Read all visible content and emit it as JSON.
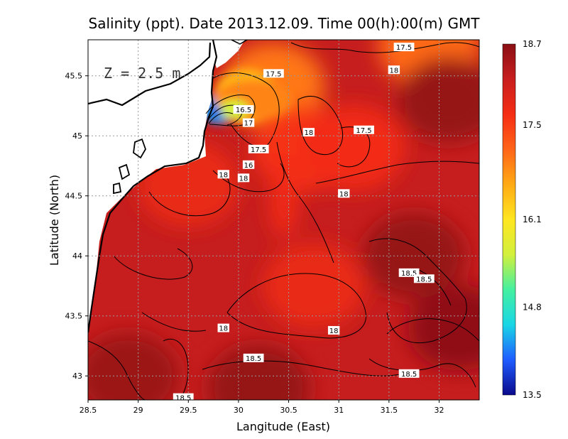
{
  "chart_data": {
    "type": "heatmap",
    "title": "Salinity (ppt). Date 2013.12.09. Time 00(h):00(m) GMT",
    "xlabel": "Langitude (East)",
    "ylabel": "Latitude (North)",
    "annotation": "Z = 2.5 m",
    "xlim": [
      28.5,
      32.4
    ],
    "ylim": [
      42.8,
      45.8
    ],
    "x_ticks": [
      {
        "value": 28.5,
        "label": "28.5"
      },
      {
        "value": 29,
        "label": "29"
      },
      {
        "value": 29.5,
        "label": "29.5"
      },
      {
        "value": 30,
        "label": "30"
      },
      {
        "value": 30.5,
        "label": "30.5"
      },
      {
        "value": 31,
        "label": "31"
      },
      {
        "value": 31.5,
        "label": "31.5"
      },
      {
        "value": 32,
        "label": "32"
      }
    ],
    "y_ticks": [
      {
        "value": 43,
        "label": "43"
      },
      {
        "value": 43.5,
        "label": "43.5"
      },
      {
        "value": 44,
        "label": "44"
      },
      {
        "value": 44.5,
        "label": "44.5"
      },
      {
        "value": 45,
        "label": "45"
      },
      {
        "value": 45.5,
        "label": "45.5"
      }
    ],
    "grid": true,
    "colorbar": {
      "min": 13.5,
      "max": 18.7,
      "placement": "right",
      "ticks": [
        {
          "value": 13.5,
          "label": "13.5"
        },
        {
          "value": 14.8,
          "label": "14.8"
        },
        {
          "value": 16.1,
          "label": "16.1"
        },
        {
          "value": 17.5,
          "label": "17.5"
        },
        {
          "value": 18.7,
          "label": "18.7"
        }
      ],
      "colors": [
        "#0a0a8c",
        "#1f5cff",
        "#19d6e6",
        "#44f0a0",
        "#d2f03c",
        "#ffe620",
        "#ffaa14",
        "#ff6418",
        "#f52d14",
        "#c81e1e",
        "#8a0f14"
      ]
    },
    "contour_labels": [
      {
        "label": "17.5",
        "lon": 31.65,
        "lat": 45.74
      },
      {
        "label": "18",
        "lon": 31.55,
        "lat": 45.55
      },
      {
        "label": "17.5",
        "lon": 30.35,
        "lat": 45.52
      },
      {
        "label": "16.5",
        "lon": 30.05,
        "lat": 45.22
      },
      {
        "label": "17",
        "lon": 30.1,
        "lat": 45.11
      },
      {
        "label": "18",
        "lon": 30.7,
        "lat": 45.03
      },
      {
        "label": "17.5",
        "lon": 31.25,
        "lat": 45.05
      },
      {
        "label": "17.5",
        "lon": 30.2,
        "lat": 44.89
      },
      {
        "label": "16",
        "lon": 30.1,
        "lat": 44.76
      },
      {
        "label": "18",
        "lon": 29.85,
        "lat": 44.68
      },
      {
        "label": "18",
        "lon": 30.05,
        "lat": 44.65
      },
      {
        "label": "18",
        "lon": 31.05,
        "lat": 44.52
      },
      {
        "label": "18.5",
        "lon": 31.7,
        "lat": 43.86
      },
      {
        "label": "18.5",
        "lon": 31.85,
        "lat": 43.81
      },
      {
        "label": "18",
        "lon": 29.85,
        "lat": 43.4
      },
      {
        "label": "18",
        "lon": 30.95,
        "lat": 43.38
      },
      {
        "label": "18.5",
        "lon": 30.15,
        "lat": 43.15
      },
      {
        "label": "18.5",
        "lon": 31.7,
        "lat": 43.02
      },
      {
        "label": "18.5",
        "lon": 29.45,
        "lat": 42.82
      }
    ],
    "salinity_features": [
      {
        "kind": "background",
        "value": 18.2
      },
      {
        "kind": "low",
        "lon": 29.8,
        "lat": 45.22,
        "value": 14.3
      },
      {
        "kind": "low",
        "lon": 30.08,
        "lat": 45.33,
        "value": 16.5
      },
      {
        "kind": "low",
        "lon": 30.35,
        "lat": 45.42,
        "value": 17.0
      },
      {
        "kind": "low",
        "lon": 31.9,
        "lat": 45.75,
        "value": 17.1
      },
      {
        "kind": "low",
        "lon": 30.65,
        "lat": 44.9,
        "value": 17.6
      },
      {
        "kind": "low",
        "lon": 31.15,
        "lat": 44.9,
        "value": 17.7
      },
      {
        "kind": "low",
        "lon": 30.75,
        "lat": 43.75,
        "value": 17.8
      },
      {
        "kind": "low",
        "lon": 29.5,
        "lat": 44.6,
        "value": 17.8
      },
      {
        "kind": "high",
        "lon": 32.2,
        "lat": 43.4,
        "value": 18.65
      },
      {
        "kind": "high",
        "lon": 31.75,
        "lat": 44.0,
        "value": 18.6
      },
      {
        "kind": "high",
        "lon": 30.2,
        "lat": 42.9,
        "value": 18.6
      },
      {
        "kind": "high",
        "lon": 28.9,
        "lat": 43.0,
        "value": 18.55
      },
      {
        "kind": "high",
        "lon": 32.1,
        "lat": 45.3,
        "value": 18.6
      }
    ]
  }
}
